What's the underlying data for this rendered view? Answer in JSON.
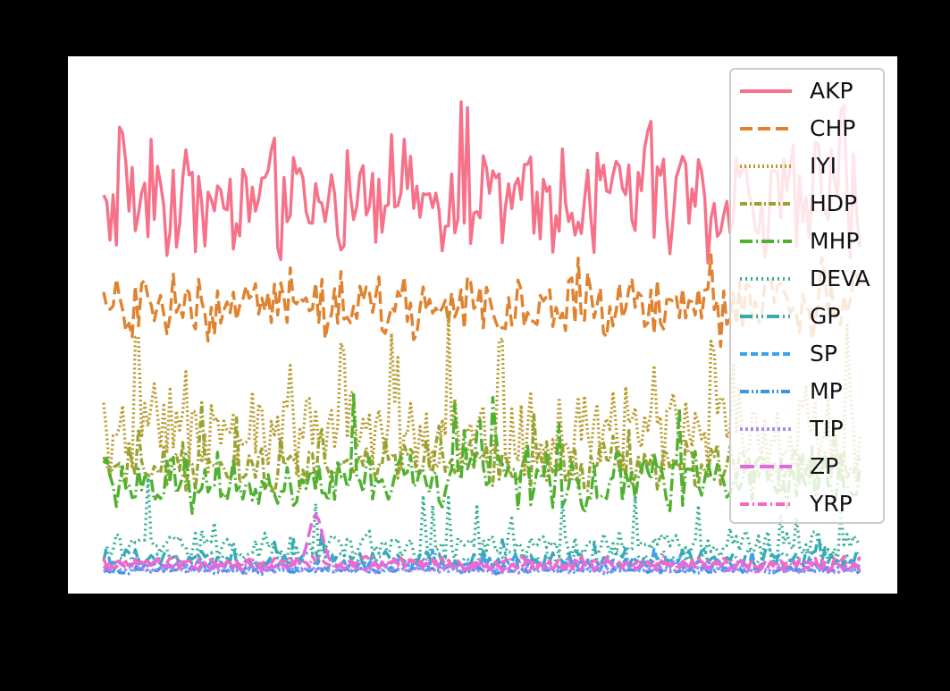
{
  "chart_data": {
    "type": "line",
    "title": "",
    "xlabel": "",
    "ylabel": "",
    "n_points": 240,
    "ylim": [
      0,
      60
    ],
    "legend_location": "top-right",
    "grid": false,
    "series": [
      {
        "name": "AKP",
        "color": "#f77189",
        "dash": "",
        "mean": 44.0,
        "amp": 9.0,
        "spike_prob": 0.1,
        "spike": 4.0
      },
      {
        "name": "CHP",
        "color": "#e08330",
        "dash": "14,6",
        "mean": 31.5,
        "amp": 5.5,
        "spike_prob": 0.08,
        "spike": 2.0
      },
      {
        "name": "IYI",
        "color": "#b89a2c",
        "dash": "2,3",
        "mean": 16.5,
        "amp": 6.5,
        "spike_prob": 0.12,
        "spike": 7.0
      },
      {
        "name": "HDP",
        "color": "#97a431",
        "dash": "8,3,2,3",
        "mean": 13.0,
        "amp": 4.0,
        "spike_prob": 0.06,
        "spike": 3.0
      },
      {
        "name": "MHP",
        "color": "#50b131",
        "dash": "14,4,2,4",
        "mean": 11.0,
        "amp": 4.5,
        "spike_prob": 0.06,
        "spike": 6.0
      },
      {
        "name": "DEVA",
        "color": "#34ae91",
        "dash": "2,4",
        "mean": 3.5,
        "amp": 2.5,
        "spike_prob": 0.07,
        "spike": 4.5
      },
      {
        "name": "GP",
        "color": "#37abb5",
        "dash": "14,4,2,4,2,4",
        "mean": 2.0,
        "amp": 1.4,
        "spike_prob": 0.05,
        "spike": 2.0
      },
      {
        "name": "SP",
        "color": "#3ba3ec",
        "dash": "8,4",
        "mean": 1.3,
        "amp": 1.0,
        "spike_prob": 0.03,
        "spike": 1.0
      },
      {
        "name": "MP",
        "color": "#3a96e8",
        "dash": "10,3,2,3,2,3",
        "mean": 0.6,
        "amp": 0.5,
        "spike_prob": 0.02,
        "spike": 0.5
      },
      {
        "name": "TIP",
        "color": "#a48cf4",
        "dash": "3,3",
        "mean": 0.7,
        "amp": 0.5,
        "spike_prob": 0.02,
        "spike": 0.5
      },
      {
        "name": "ZP",
        "color": "#e866e0",
        "dash": "16,6",
        "mean": 1.2,
        "amp": 0.9,
        "spike_prob": 0.01,
        "spike": 0.5
      },
      {
        "name": "YRP",
        "color": "#f668c2",
        "dash": "10,4,2,4",
        "mean": 1.5,
        "amp": 1.0,
        "spike_prob": 0.01,
        "spike": 0.5
      }
    ]
  }
}
